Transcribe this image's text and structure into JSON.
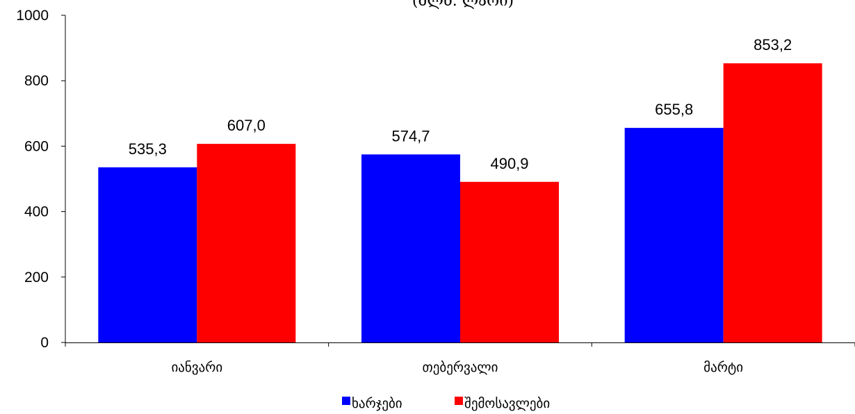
{
  "chart_data": {
    "type": "bar",
    "subtitle": "(მლნ. ლარი)",
    "categories": [
      "იანვარი",
      "თებერვალი",
      "მარტი"
    ],
    "series": [
      {
        "name": "ხარჯები",
        "color": "#0000FF",
        "values": [
          535.3,
          574.7,
          655.8
        ],
        "labels": [
          "535,3",
          "574,7",
          "655,8"
        ]
      },
      {
        "name": "შემოსავლები",
        "color": "#FF0000",
        "values": [
          607.0,
          490.9,
          853.2
        ],
        "labels": [
          "607,0",
          "490,9",
          "853,2"
        ]
      }
    ],
    "ylim": [
      0,
      1000
    ],
    "yticks": [
      0,
      200,
      400,
      600,
      800,
      1000
    ],
    "grid": false,
    "legend_position": "bottom"
  }
}
